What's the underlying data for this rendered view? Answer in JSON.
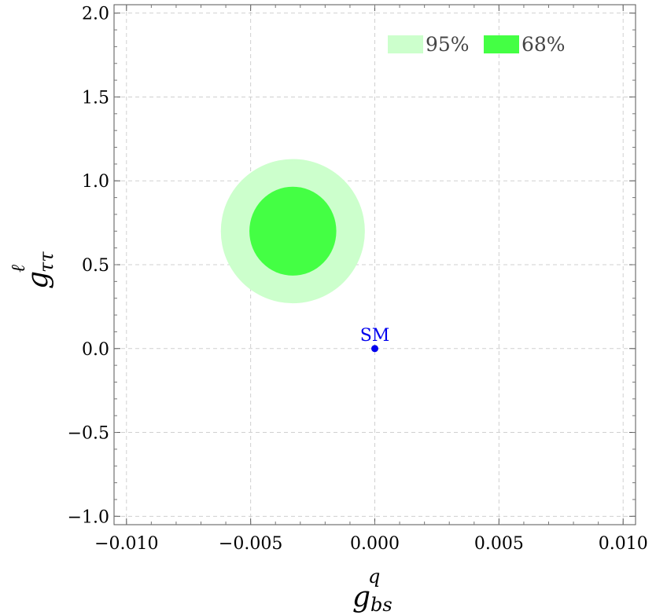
{
  "chart_data": {
    "type": "contour",
    "xlabel": {
      "base": "g",
      "sup": "q",
      "sub": "bs"
    },
    "ylabel": {
      "base": "g",
      "sup": "ℓ",
      "sub": "ττ"
    },
    "xlim": [
      -0.0105,
      0.0105
    ],
    "ylim": [
      -1.05,
      2.05
    ],
    "x_ticks": [
      -0.01,
      -0.005,
      0.0,
      0.005,
      0.01
    ],
    "x_tick_labels": [
      "−0.010",
      "−0.005",
      "0.000",
      "0.005",
      "0.010"
    ],
    "y_ticks": [
      -1.0,
      -0.5,
      0.0,
      0.5,
      1.0,
      1.5,
      2.0
    ],
    "y_tick_labels": [
      "−1.0",
      "−0.5",
      "0.0",
      "0.5",
      "1.0",
      "1.5",
      "2.0"
    ],
    "grid": true,
    "legend_position": "top-right",
    "series": [
      {
        "name": "95%",
        "color": "#ccffcc",
        "center": [
          -0.0033,
          0.7
        ],
        "half_width_x": 0.0029,
        "half_height_y": 0.43
      },
      {
        "name": "68%",
        "color": "#44ff44",
        "center": [
          -0.0033,
          0.7
        ],
        "half_width_x": 0.00175,
        "half_height_y": 0.265
      }
    ],
    "points": [
      {
        "label": "SM",
        "x": 0.0,
        "y": 0.0,
        "color": "#0000ee"
      }
    ]
  }
}
